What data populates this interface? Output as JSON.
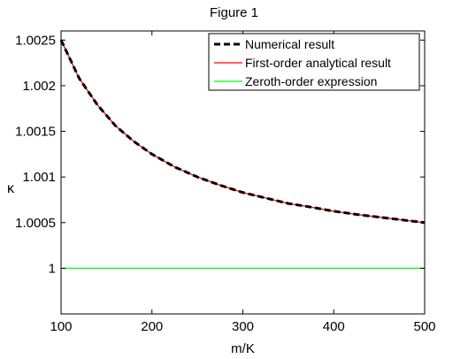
{
  "figure_title": "Figure 1",
  "chart_data": {
    "type": "line",
    "xlabel": "m/K",
    "ylabel": "κ",
    "xlim": [
      100,
      500
    ],
    "ylim": [
      0.9995,
      1.0026
    ],
    "xticks": [
      100,
      200,
      300,
      400,
      500
    ],
    "xtick_labels": [
      "100",
      "200",
      "300",
      "400",
      "500"
    ],
    "yticks": [
      1.0,
      1.0005,
      1.001,
      1.0015,
      1.002,
      1.0025
    ],
    "ytick_labels": [
      "1",
      "1.0005",
      "1.001",
      "1.0015",
      "1.002",
      "1.0025"
    ],
    "grid": false,
    "legend_position": "top-right",
    "x": [
      100,
      120,
      140,
      160,
      180,
      200,
      225,
      250,
      275,
      300,
      325,
      350,
      375,
      400,
      425,
      450,
      475,
      500
    ],
    "series": [
      {
        "name": "Numerical result",
        "color": "#000000",
        "style": "dashed",
        "values": [
          1.0025,
          1.00208,
          1.00179,
          1.00156,
          1.00139,
          1.00125,
          1.00111,
          1.001,
          1.00091,
          1.00083,
          1.00077,
          1.00071,
          1.00067,
          1.000625,
          1.00059,
          1.00056,
          1.00053,
          1.0005
        ]
      },
      {
        "name": "First-order analytical result",
        "color": "#ff0000",
        "style": "solid",
        "values": [
          1.0025,
          1.00208,
          1.00179,
          1.00156,
          1.00139,
          1.00125,
          1.00111,
          1.001,
          1.00091,
          1.00083,
          1.00077,
          1.00071,
          1.00067,
          1.000625,
          1.00059,
          1.00056,
          1.00053,
          1.0005
        ]
      },
      {
        "name": "Zeroth-order expression",
        "color": "#00ff00",
        "style": "solid",
        "values": [
          1,
          1,
          1,
          1,
          1,
          1,
          1,
          1,
          1,
          1,
          1,
          1,
          1,
          1,
          1,
          1,
          1,
          1
        ]
      }
    ]
  }
}
